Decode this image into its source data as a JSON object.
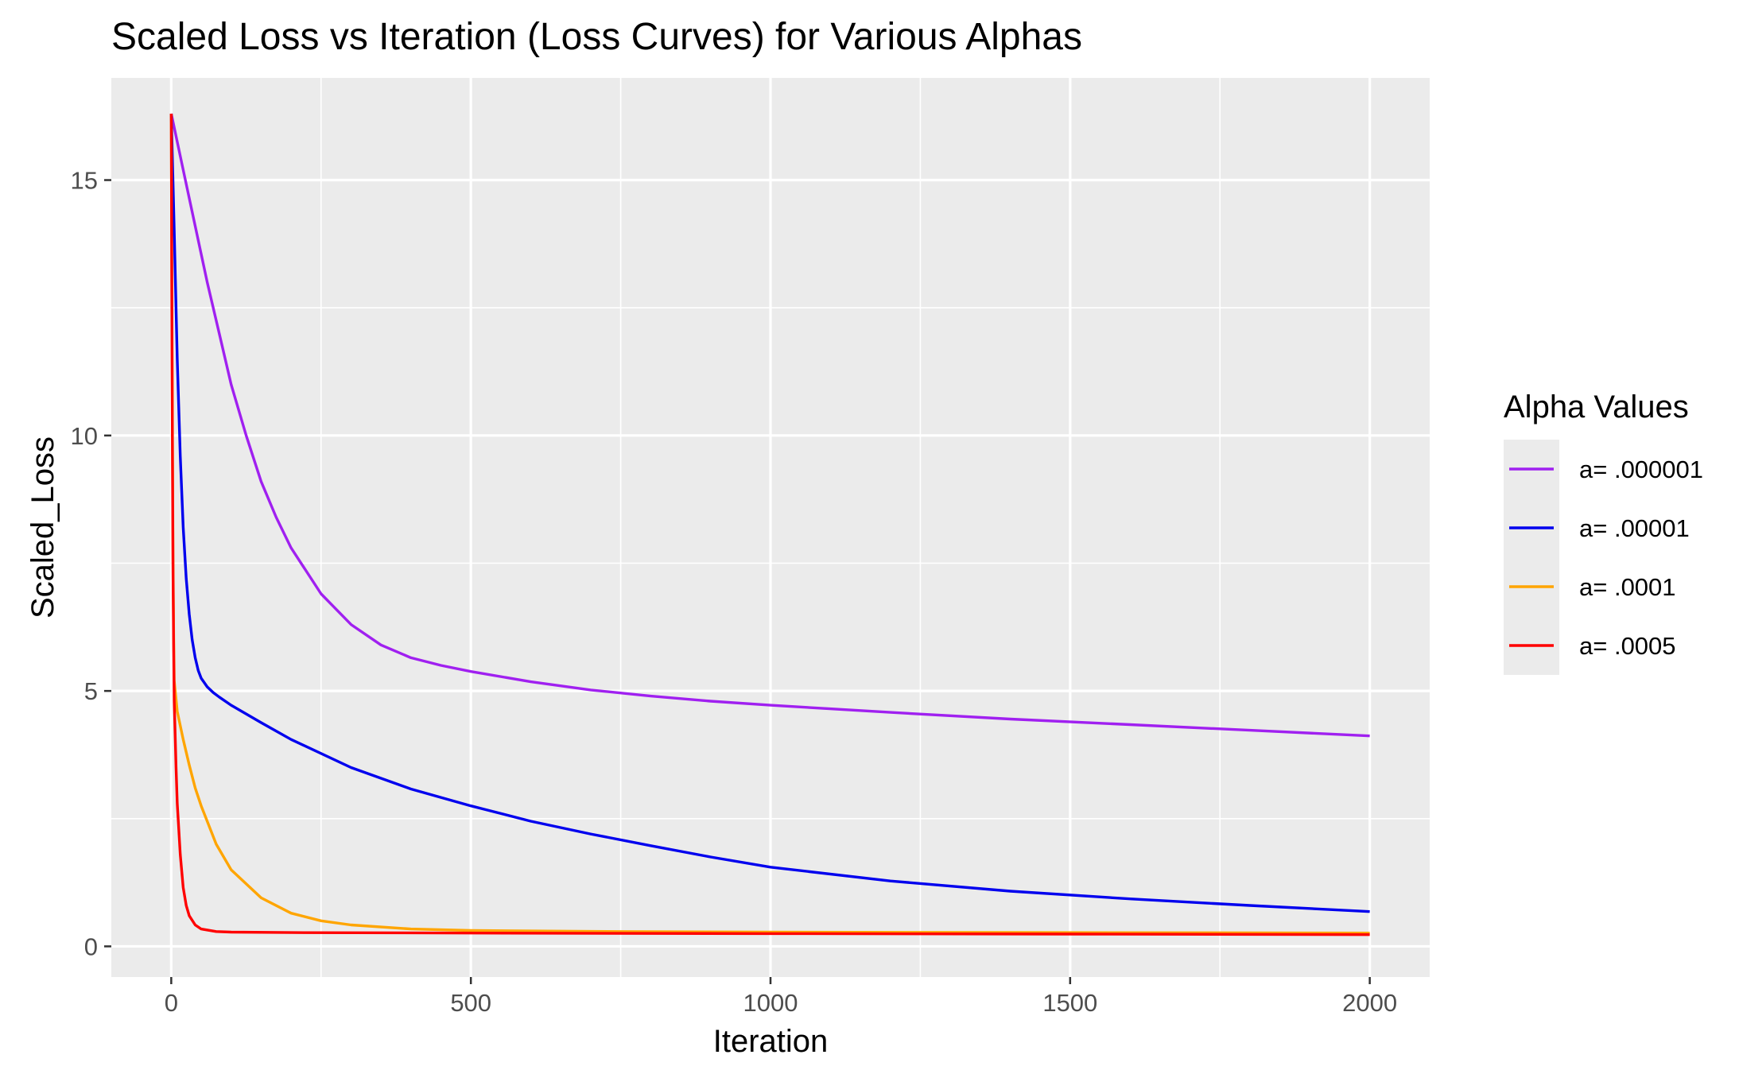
{
  "chart_data": {
    "type": "line",
    "title": "Scaled Loss vs Iteration (Loss Curves) for Various Alphas",
    "xlabel": "Iteration",
    "ylabel": "Scaled_Loss",
    "xlim": [
      -100,
      2100
    ],
    "ylim": [
      -0.6,
      17.0
    ],
    "x_ticks": [
      0,
      500,
      1000,
      1500,
      2000
    ],
    "x_tick_labels": [
      "0",
      "500",
      "1000",
      "1500",
      "2000"
    ],
    "x_minor_ticks": [
      250,
      750,
      1250,
      1750
    ],
    "y_ticks": [
      0,
      5,
      10,
      15
    ],
    "y_tick_labels": [
      "0",
      "5",
      "10",
      "15"
    ],
    "y_minor_ticks": [
      2.5,
      7.5,
      12.5
    ],
    "grid": true,
    "panel_background": "#ebebeb",
    "legend": {
      "title": "Alpha Values",
      "position": "right"
    },
    "series": [
      {
        "name": "a= .000001",
        "color": "#a020f0",
        "points": [
          [
            0,
            16.3
          ],
          [
            20,
            15.2
          ],
          [
            40,
            14.1
          ],
          [
            60,
            13.0
          ],
          [
            80,
            12.0
          ],
          [
            100,
            11.0
          ],
          [
            125,
            10.0
          ],
          [
            150,
            9.1
          ],
          [
            175,
            8.4
          ],
          [
            200,
            7.8
          ],
          [
            250,
            6.9
          ],
          [
            300,
            6.3
          ],
          [
            350,
            5.9
          ],
          [
            400,
            5.65
          ],
          [
            450,
            5.5
          ],
          [
            500,
            5.38
          ],
          [
            600,
            5.18
          ],
          [
            700,
            5.02
          ],
          [
            800,
            4.9
          ],
          [
            900,
            4.8
          ],
          [
            1000,
            4.72
          ],
          [
            1200,
            4.58
          ],
          [
            1400,
            4.45
          ],
          [
            1600,
            4.34
          ],
          [
            1800,
            4.23
          ],
          [
            2000,
            4.12
          ]
        ]
      },
      {
        "name": "a= .00001",
        "color": "#0000ee",
        "points": [
          [
            0,
            16.3
          ],
          [
            5,
            14.0
          ],
          [
            10,
            11.5
          ],
          [
            15,
            9.6
          ],
          [
            20,
            8.2
          ],
          [
            25,
            7.2
          ],
          [
            30,
            6.5
          ],
          [
            35,
            6.0
          ],
          [
            40,
            5.65
          ],
          [
            45,
            5.4
          ],
          [
            50,
            5.25
          ],
          [
            60,
            5.08
          ],
          [
            70,
            4.97
          ],
          [
            80,
            4.88
          ],
          [
            100,
            4.72
          ],
          [
            150,
            4.38
          ],
          [
            200,
            4.05
          ],
          [
            300,
            3.5
          ],
          [
            400,
            3.08
          ],
          [
            500,
            2.75
          ],
          [
            600,
            2.45
          ],
          [
            700,
            2.2
          ],
          [
            800,
            1.97
          ],
          [
            900,
            1.75
          ],
          [
            1000,
            1.55
          ],
          [
            1200,
            1.28
          ],
          [
            1400,
            1.08
          ],
          [
            1600,
            0.93
          ],
          [
            1800,
            0.8
          ],
          [
            2000,
            0.68
          ]
        ]
      },
      {
        "name": "a= .0001",
        "color": "#ffa500",
        "points": [
          [
            0,
            16.3
          ],
          [
            1,
            13.0
          ],
          [
            2,
            10.0
          ],
          [
            3,
            7.6
          ],
          [
            4,
            6.1
          ],
          [
            5,
            5.2
          ],
          [
            10,
            4.6
          ],
          [
            20,
            4.05
          ],
          [
            30,
            3.55
          ],
          [
            40,
            3.1
          ],
          [
            50,
            2.75
          ],
          [
            75,
            2.0
          ],
          [
            100,
            1.5
          ],
          [
            150,
            0.95
          ],
          [
            200,
            0.65
          ],
          [
            250,
            0.5
          ],
          [
            300,
            0.42
          ],
          [
            400,
            0.34
          ],
          [
            500,
            0.31
          ],
          [
            750,
            0.29
          ],
          [
            1000,
            0.28
          ],
          [
            1500,
            0.27
          ],
          [
            2000,
            0.26
          ]
        ]
      },
      {
        "name": "a= .0005",
        "color": "#ff0000",
        "points": [
          [
            0,
            16.3
          ],
          [
            1,
            12.5
          ],
          [
            2,
            9.5
          ],
          [
            3,
            7.3
          ],
          [
            4,
            5.8
          ],
          [
            5,
            4.8
          ],
          [
            8,
            3.5
          ],
          [
            10,
            2.8
          ],
          [
            15,
            1.8
          ],
          [
            20,
            1.15
          ],
          [
            25,
            0.8
          ],
          [
            30,
            0.6
          ],
          [
            40,
            0.42
          ],
          [
            50,
            0.34
          ],
          [
            75,
            0.29
          ],
          [
            100,
            0.28
          ],
          [
            200,
            0.27
          ],
          [
            500,
            0.26
          ],
          [
            1000,
            0.25
          ],
          [
            1500,
            0.24
          ],
          [
            2000,
            0.23
          ]
        ]
      }
    ]
  }
}
